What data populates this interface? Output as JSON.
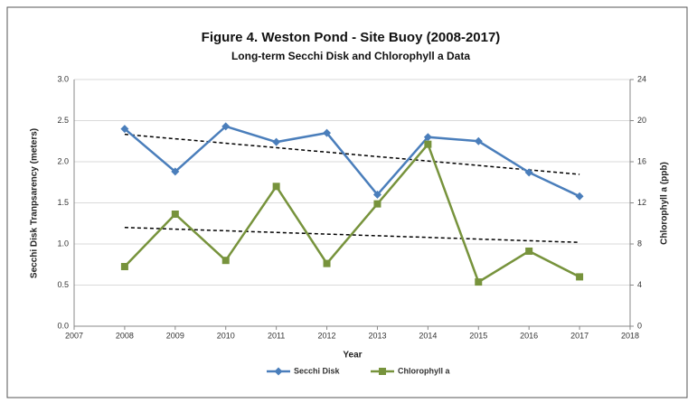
{
  "chart_data": {
    "type": "line",
    "title": "Figure 4. Weston Pond - Site Buoy (2008-2017)",
    "subtitle": "Long-term Secchi Disk and Chlorophyll a Data",
    "x_label": "Year",
    "y_label": "Secchi Disk Tranpsarency (meters)",
    "y2_label": "Chlorophyll a (ppb)",
    "x": [
      2008,
      2009,
      2010,
      2011,
      2012,
      2013,
      2014,
      2015,
      2016,
      2017
    ],
    "series": [
      {
        "name": "Secchi Disk",
        "color": "#4a7ebb",
        "marker": "diamond",
        "values": [
          2.4,
          1.88,
          2.43,
          2.24,
          2.35,
          1.6,
          2.3,
          2.25,
          1.87,
          1.58
        ]
      },
      {
        "name": "Chlorophyll a",
        "color": "#77933c",
        "marker": "square",
        "axis": "y2",
        "values": [
          5.8,
          10.9,
          6.4,
          13.6,
          6.1,
          11.9,
          17.7,
          4.3,
          7.3,
          4.8
        ]
      }
    ],
    "trendline": true,
    "xlim": [
      2007,
      2018
    ],
    "xticks": [
      2007,
      2008,
      2009,
      2010,
      2011,
      2012,
      2013,
      2014,
      2015,
      2016,
      2017,
      2018
    ],
    "ylim": [
      0,
      3
    ],
    "yticks": [
      {
        "value": 0,
        "label": "0.0"
      },
      {
        "value": 0.5,
        "label": "0.5"
      },
      {
        "value": 1,
        "label": "1.0"
      },
      {
        "value": 1.5,
        "label": "1.5"
      },
      {
        "value": 2,
        "label": "2.0"
      },
      {
        "value": 2.5,
        "label": "2.5"
      },
      {
        "value": 3,
        "label": "3.0"
      }
    ],
    "y2lim": [
      0,
      24
    ],
    "y2ticks": [
      0,
      4,
      8,
      12,
      16,
      20,
      24
    ],
    "legend": "bottom"
  }
}
